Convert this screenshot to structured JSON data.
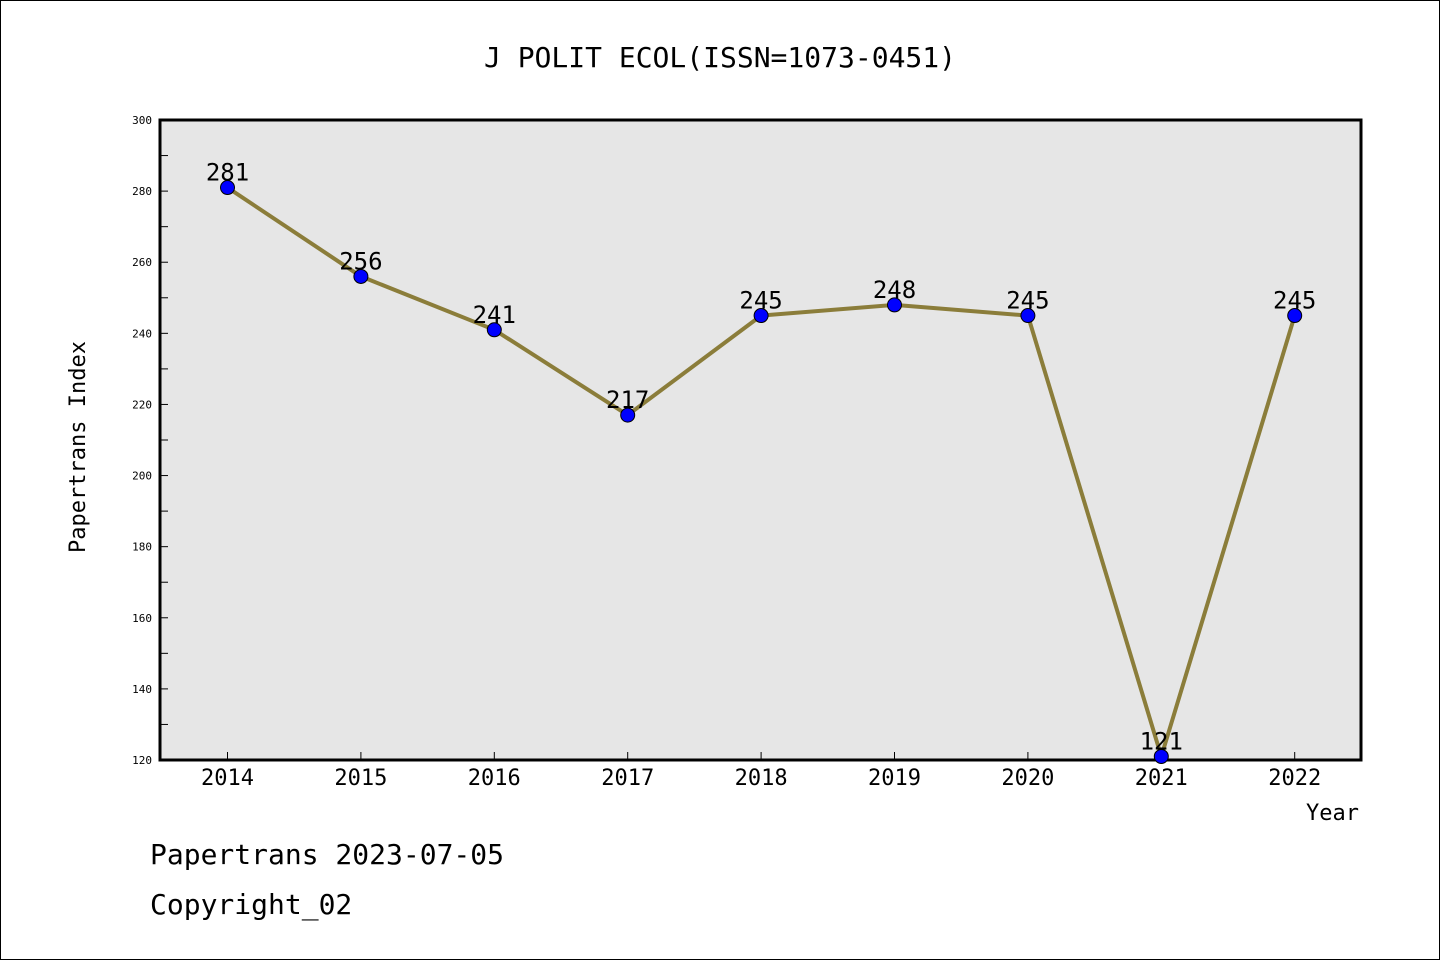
{
  "chart_data": {
    "type": "line",
    "title": "J POLIT ECOL(ISSN=1073-0451)",
    "xlabel": "Year",
    "ylabel": "Papertrans Index",
    "categories": [
      "2014",
      "2015",
      "2016",
      "2017",
      "2018",
      "2019",
      "2020",
      "2021",
      "2022"
    ],
    "series": [
      {
        "values": [
          281,
          256,
          241,
          217,
          245,
          248,
          245,
          121,
          245
        ]
      }
    ],
    "ylim": [
      120,
      300
    ],
    "yticks": [
      120,
      140,
      160,
      180,
      200,
      220,
      240,
      260,
      280,
      300
    ],
    "grid": false,
    "line_color": "#8b7d3a",
    "marker_color": "#0000ff",
    "plot_background": "#e6e6e6"
  },
  "footer": {
    "line1": "Papertrans 2023-07-05",
    "line2": "Copyright_02"
  }
}
